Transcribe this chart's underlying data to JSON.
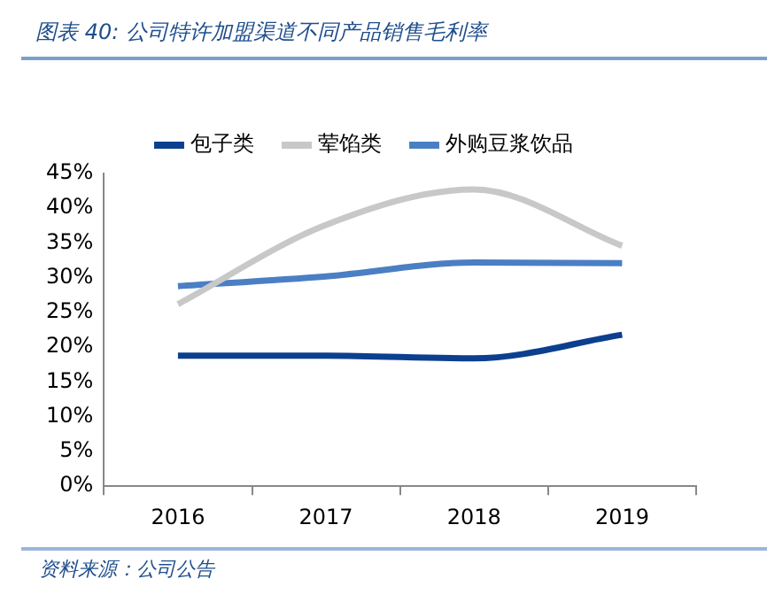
{
  "chart_data": {
    "type": "line",
    "title": "图表 40:  公司特许加盟渠道不同产品销售毛利率",
    "categories": [
      "2016",
      "2017",
      "2018",
      "2019"
    ],
    "series": [
      {
        "name": "包子类",
        "color": "#0c3f8f",
        "values": [
          18.8,
          18.8,
          18.4,
          21.8
        ]
      },
      {
        "name": "荤馅类",
        "color": "#c8c8c8",
        "values": [
          26.2,
          37.6,
          42.7,
          34.6
        ]
      },
      {
        "name": "外购豆浆饮品",
        "color": "#4a7fc4",
        "values": [
          28.8,
          30.2,
          32.2,
          32.1
        ]
      }
    ],
    "ylim": [
      0,
      45
    ],
    "yticks": [
      {
        "value": 0,
        "label": "0%"
      },
      {
        "value": 5,
        "label": "5%"
      },
      {
        "value": 10,
        "label": "10%"
      },
      {
        "value": 15,
        "label": "15%"
      },
      {
        "value": 20,
        "label": "20%"
      },
      {
        "value": 25,
        "label": "25%"
      },
      {
        "value": 30,
        "label": "30%"
      },
      {
        "value": 35,
        "label": "35%"
      },
      {
        "value": 40,
        "label": "40%"
      },
      {
        "value": 45,
        "label": "45%"
      }
    ],
    "grid": false,
    "legend": "top",
    "marker": "none",
    "line_style": "solid",
    "annotations": [
      "资料来源：公司公告"
    ]
  }
}
